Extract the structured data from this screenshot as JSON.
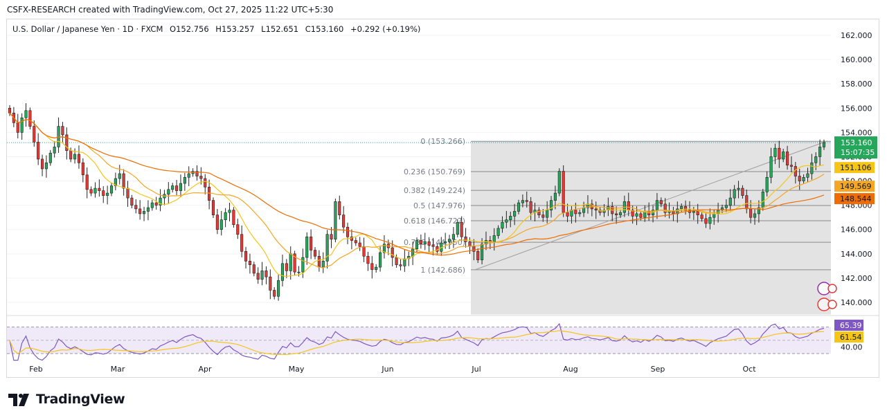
{
  "header": {
    "credit": "CSFX-RESEARCH created with TradingView.com, Oct 27, 2025 11:22 UTC+5:30"
  },
  "legend": {
    "symbol": "U.S. Dollar / Japanese Yen · 1D · FXCM",
    "open": "O152.756",
    "high": "H153.257",
    "low": "L152.651",
    "close": "C153.160",
    "change": "+0.292 (+0.19%)"
  },
  "footer": {
    "brand": "TradingView"
  },
  "chart_data": [
    {
      "type": "candlestick",
      "title": "U.S. Dollar / Japanese Yen · 1D · FXCM",
      "ylim": [
        139,
        163
      ],
      "y_ticks": [
        "162.000",
        "160.000",
        "158.000",
        "156.000",
        "154.000",
        "152.000",
        "150.000",
        "148.000",
        "146.000",
        "144.000",
        "142.000",
        "140.000"
      ],
      "x_ticks": [
        "Feb",
        "Mar",
        "Apr",
        "May",
        "Jun",
        "Jul",
        "Aug",
        "Sep",
        "Oct"
      ],
      "last_price": "153.160",
      "countdown": "15:07:35",
      "ma_labels": [
        {
          "value": "151.106",
          "color": "#f5c518"
        },
        {
          "value": "149.569",
          "color": "#f5a623"
        },
        {
          "value": "148.544",
          "color": "#ef6c00"
        }
      ],
      "fibonacci": [
        {
          "label": "0 (153.266)",
          "value": 153.266
        },
        {
          "label": "0.236 (150.769)",
          "value": 150.769
        },
        {
          "label": "0.382 (149.224)",
          "value": 149.224
        },
        {
          "label": "0.5 (147.976)",
          "value": 147.976
        },
        {
          "label": "0.618 (146.727)",
          "value": 146.727
        },
        {
          "label": "0.786 (144.950)",
          "value": 144.95
        },
        {
          "label": "1 (142.686)",
          "value": 142.686
        }
      ],
      "closes": [
        155.6,
        154.8,
        154.0,
        155.2,
        155.8,
        154.5,
        153.2,
        151.8,
        151.0,
        151.5,
        152.3,
        152.8,
        154.5,
        153.8,
        152.5,
        151.8,
        152.2,
        151.5,
        150.5,
        149.3,
        149.0,
        149.4,
        149.2,
        148.8,
        149.0,
        149.6,
        150.2,
        150.6,
        149.4,
        148.6,
        148.0,
        147.7,
        147.3,
        147.5,
        147.8,
        148.2,
        148.0,
        148.6,
        148.9,
        149.3,
        149.6,
        149.2,
        149.8,
        150.3,
        150.6,
        150.8,
        150.4,
        150.2,
        149.5,
        148.4,
        147.2,
        146.0,
        146.8,
        147.4,
        147.6,
        146.4,
        145.6,
        144.2,
        143.4,
        143.1,
        142.4,
        141.9,
        142.6,
        142.1,
        141.0,
        140.5,
        141.8,
        143.2,
        142.6,
        144.0,
        142.5,
        142.5,
        143.7,
        145.4,
        144.3,
        143.8,
        142.9,
        143.4,
        145.6,
        145.2,
        148.3,
        147.2,
        146.2,
        145.4,
        145.1,
        144.9,
        144.6,
        143.8,
        143.2,
        142.7,
        142.9,
        144.1,
        144.8,
        144.5,
        143.7,
        143.1,
        143.0,
        143.6,
        143.8,
        144.4,
        145.1,
        144.8,
        145.0,
        144.7,
        144.6,
        144.2,
        144.9,
        145.0,
        145.2,
        145.6,
        146.6,
        145.4,
        145.0,
        144.6,
        144.2,
        143.5,
        144.8,
        145.1,
        145.0,
        145.5,
        146.1,
        146.6,
        146.8,
        147.1,
        147.5,
        148.2,
        148.4,
        148.3,
        147.4,
        147.6,
        147.2,
        147.0,
        147.6,
        148.4,
        149.0,
        150.8,
        147.4,
        147.1,
        147.6,
        147.3,
        147.4,
        147.8,
        148.1,
        147.7,
        147.6,
        147.4,
        147.6,
        147.9,
        147.3,
        147.2,
        147.4,
        148.3,
        147.6,
        147.1,
        147.3,
        147.0,
        147.5,
        147.2,
        147.6,
        148.4,
        148.1,
        147.4,
        147.5,
        147.3,
        147.7,
        147.9,
        147.6,
        147.4,
        147.5,
        147.2,
        146.9,
        146.5,
        147.0,
        147.3,
        147.6,
        147.8,
        148.0,
        148.6,
        149.3,
        149.4,
        148.8,
        147.7,
        147.0,
        147.3,
        147.8,
        149.1,
        150.3,
        152.0,
        152.7,
        151.8,
        152.4,
        151.3,
        151.2,
        150.4,
        150.0,
        150.3,
        150.6,
        151.5,
        152.0,
        152.8,
        153.16
      ]
    },
    {
      "type": "line",
      "title": "RSI",
      "ylim": [
        30,
        80
      ],
      "y_ticks": [
        "40.00"
      ],
      "values_labels": [
        {
          "value": "65.39",
          "color": "#7e57c2"
        },
        {
          "value": "61.54",
          "color": "#f5c518"
        }
      ]
    }
  ]
}
